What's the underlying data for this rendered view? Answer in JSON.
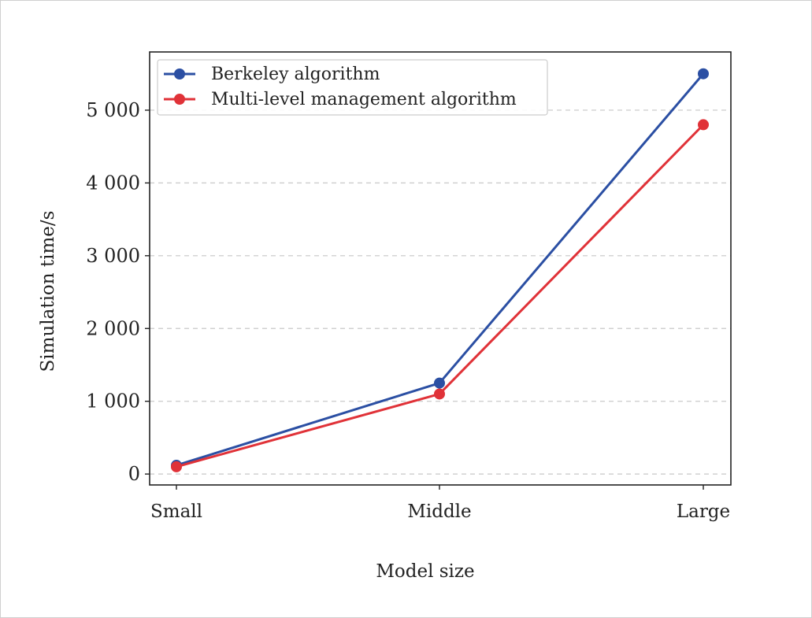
{
  "chart_data": {
    "type": "line",
    "categories": [
      "Small",
      "Middle",
      "Large"
    ],
    "series": [
      {
        "name": "Berkeley algorithm",
        "color": "#2b4fa3",
        "values": [
          120,
          1250,
          5500
        ]
      },
      {
        "name": "Multi-level management algorithm",
        "color": "#e03238",
        "values": [
          100,
          1100,
          4800
        ]
      }
    ],
    "xlabel": "Model size",
    "ylabel": "Simulation time/s",
    "yticks": [
      0,
      1000,
      2000,
      3000,
      4000,
      5000
    ],
    "ytick_labels": [
      "0",
      "1 000",
      "2 000",
      "3 000",
      "4 000",
      "5 000"
    ],
    "ylim": [
      -150,
      5800
    ],
    "grid": "horizontal dashed",
    "legend": "top-left"
  }
}
